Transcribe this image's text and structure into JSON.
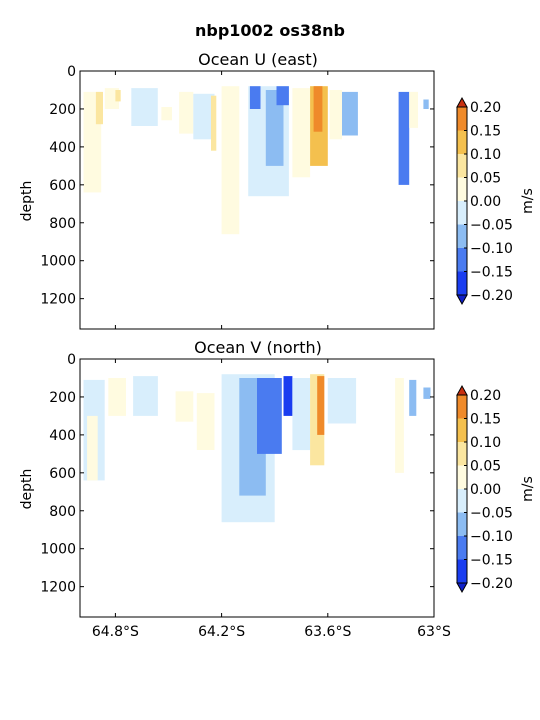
{
  "figure": {
    "suptitle": "nbp1002 os38nb"
  },
  "colorbar": {
    "label": "m/s",
    "ticks": [
      "0.20",
      "0.15",
      "0.10",
      "0.05",
      "0.00",
      "−0.05",
      "−0.10",
      "−0.15",
      "−0.20"
    ],
    "levels": [
      -0.2,
      -0.15,
      -0.1,
      -0.05,
      0.0,
      0.05,
      0.1,
      0.15,
      0.2
    ],
    "colors": [
      "#1a3df0",
      "#4a7bf0",
      "#8cbcf2",
      "#d8eefc",
      "#fffbe0",
      "#fbe6a0",
      "#f4c04e",
      "#ef8a2a",
      "#e0481e"
    ],
    "under_color": "#1020c8",
    "over_color": "#c83010"
  },
  "chart_data": [
    {
      "type": "heatmap",
      "title": "Ocean U (east)",
      "ylabel": "depth",
      "xlabel": "",
      "ylim": [
        1360,
        0
      ],
      "yticks": [
        0,
        200,
        400,
        600,
        800,
        1000,
        1200
      ],
      "xticks": [],
      "grid": false,
      "note": "depth-latitude section of eastward velocity (m/s)",
      "regions": [
        {
          "lat": [
            -64.98,
            -64.88
          ],
          "depth": [
            110,
            640
          ],
          "u": 0.02
        },
        {
          "lat": [
            -64.91,
            -64.87
          ],
          "depth": [
            110,
            280
          ],
          "u": 0.07
        },
        {
          "lat": [
            -64.86,
            -64.78
          ],
          "depth": [
            90,
            200
          ],
          "u": 0.01
        },
        {
          "lat": [
            -64.8,
            -64.77
          ],
          "depth": [
            100,
            160
          ],
          "u": 0.06
        },
        {
          "lat": [
            -64.71,
            -64.56
          ],
          "depth": [
            90,
            290
          ],
          "u": -0.05
        },
        {
          "lat": [
            -64.54,
            -64.48
          ],
          "depth": [
            190,
            260
          ],
          "u": 0.01
        },
        {
          "lat": [
            -64.44,
            -64.36
          ],
          "depth": [
            110,
            330
          ],
          "u": 0.02
        },
        {
          "lat": [
            -64.36,
            -64.24
          ],
          "depth": [
            120,
            360
          ],
          "u": -0.04
        },
        {
          "lat": [
            -64.26,
            -64.23
          ],
          "depth": [
            130,
            420
          ],
          "u": 0.06
        },
        {
          "lat": [
            -64.2,
            -64.1
          ],
          "depth": [
            80,
            860
          ],
          "u": 0.02
        },
        {
          "lat": [
            -64.05,
            -63.82
          ],
          "depth": [
            80,
            660
          ],
          "u": -0.05
        },
        {
          "lat": [
            -64.04,
            -63.98
          ],
          "depth": [
            80,
            200
          ],
          "u": -0.13
        },
        {
          "lat": [
            -63.95,
            -63.85
          ],
          "depth": [
            100,
            500
          ],
          "u": -0.09
        },
        {
          "lat": [
            -63.89,
            -63.82
          ],
          "depth": [
            80,
            180
          ],
          "u": -0.12
        },
        {
          "lat": [
            -63.8,
            -63.7
          ],
          "depth": [
            90,
            560
          ],
          "u": 0.01
        },
        {
          "lat": [
            -63.7,
            -63.6
          ],
          "depth": [
            80,
            500
          ],
          "u": 0.11
        },
        {
          "lat": [
            -63.68,
            -63.63
          ],
          "depth": [
            80,
            320
          ],
          "u": 0.18
        },
        {
          "lat": [
            -63.59,
            -63.52
          ],
          "depth": [
            100,
            360
          ],
          "u": 0.03
        },
        {
          "lat": [
            -63.52,
            -63.43
          ],
          "depth": [
            110,
            340
          ],
          "u": -0.06
        },
        {
          "lat": [
            -63.2,
            -63.14
          ],
          "depth": [
            110,
            600
          ],
          "u": -0.11
        },
        {
          "lat": [
            -63.14,
            -63.09
          ],
          "depth": [
            110,
            300
          ],
          "u": 0.03
        },
        {
          "lat": [
            -63.06,
            -63.03
          ],
          "depth": [
            150,
            200
          ],
          "u": -0.08
        }
      ]
    },
    {
      "type": "heatmap",
      "title": "Ocean V (north)",
      "ylabel": "depth",
      "xlabel": "",
      "ylim": [
        1360,
        0
      ],
      "yticks": [
        0,
        200,
        400,
        600,
        800,
        1000,
        1200
      ],
      "xticks": [
        "64.8°S",
        "64.2°S",
        "63.6°S",
        "63°S"
      ],
      "xtick_values": [
        -64.8,
        -64.2,
        -63.6,
        -63.0
      ],
      "xlim": [
        -65.0,
        -63.0
      ],
      "grid": false,
      "note": "depth-latitude section of northward velocity (m/s)",
      "regions": [
        {
          "lat": [
            -64.98,
            -64.86
          ],
          "depth": [
            110,
            640
          ],
          "u": -0.02
        },
        {
          "lat": [
            -64.96,
            -64.9
          ],
          "depth": [
            300,
            640
          ],
          "u": 0.02
        },
        {
          "lat": [
            -64.84,
            -64.74
          ],
          "depth": [
            100,
            300
          ],
          "u": 0.02
        },
        {
          "lat": [
            -64.7,
            -64.56
          ],
          "depth": [
            90,
            300
          ],
          "u": -0.03
        },
        {
          "lat": [
            -64.46,
            -64.36
          ],
          "depth": [
            170,
            330
          ],
          "u": 0.03
        },
        {
          "lat": [
            -64.34,
            -64.24
          ],
          "depth": [
            180,
            480
          ],
          "u": 0.02
        },
        {
          "lat": [
            -64.2,
            -63.9
          ],
          "depth": [
            80,
            860
          ],
          "u": -0.04
        },
        {
          "lat": [
            -64.1,
            -63.95
          ],
          "depth": [
            100,
            720
          ],
          "u": -0.07
        },
        {
          "lat": [
            -64.0,
            -63.86
          ],
          "depth": [
            100,
            500
          ],
          "u": -0.12
        },
        {
          "lat": [
            -63.85,
            -63.8
          ],
          "depth": [
            90,
            300
          ],
          "u": -0.18
        },
        {
          "lat": [
            -63.8,
            -63.7
          ],
          "depth": [
            100,
            480
          ],
          "u": -0.02
        },
        {
          "lat": [
            -63.7,
            -63.62
          ],
          "depth": [
            80,
            560
          ],
          "u": 0.09
        },
        {
          "lat": [
            -63.66,
            -63.62
          ],
          "depth": [
            90,
            400
          ],
          "u": 0.17
        },
        {
          "lat": [
            -63.6,
            -63.44
          ],
          "depth": [
            100,
            340
          ],
          "u": -0.04
        },
        {
          "lat": [
            -63.22,
            -63.17
          ],
          "depth": [
            100,
            600
          ],
          "u": 0.01
        },
        {
          "lat": [
            -63.14,
            -63.1
          ],
          "depth": [
            110,
            300
          ],
          "u": -0.1
        },
        {
          "lat": [
            -63.06,
            -63.02
          ],
          "depth": [
            150,
            210
          ],
          "u": -0.06
        }
      ]
    }
  ]
}
